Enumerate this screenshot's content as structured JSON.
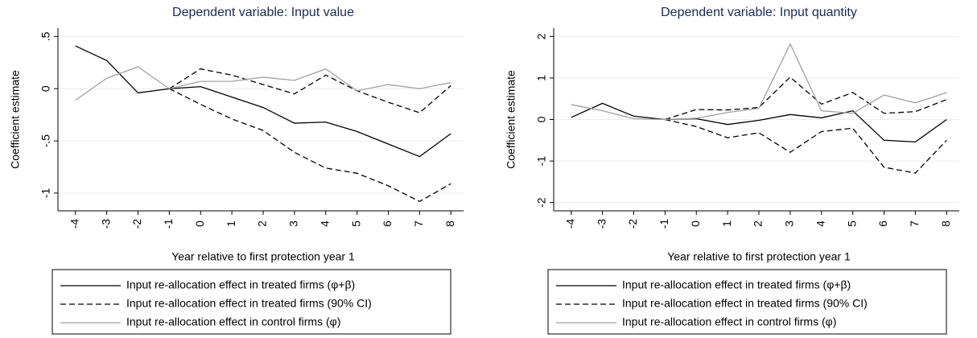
{
  "chart_data": [
    {
      "type": "line",
      "title": "Dependent variable: Input value",
      "y_label": "Coefficient estimate",
      "x_label": "Year relative to first protection year 1",
      "x": [
        -4,
        -3,
        -2,
        -1,
        0,
        1,
        2,
        3,
        4,
        5,
        6,
        7,
        8
      ],
      "xlim": [
        -4.25,
        8.25
      ],
      "xticks": [
        -4,
        -3,
        -2,
        -1,
        0,
        1,
        2,
        3,
        4,
        5,
        6,
        7,
        8
      ],
      "ylim": [
        -1.17,
        0.58
      ],
      "yticks": [
        -1,
        {
          "value": -0.5,
          "label": "-.5"
        },
        0,
        {
          "value": 0.5,
          "label": ".5"
        }
      ],
      "grid": true,
      "series": [
        {
          "name": "Input re-allocation effect in treated firms (φ+β)",
          "color": "#000000",
          "dash": false,
          "values": [
            0.41,
            0.27,
            -0.04,
            0,
            0.02,
            -0.08,
            -0.18,
            -0.33,
            -0.32,
            -0.41,
            -0.53,
            -0.65,
            -0.43
          ]
        },
        {
          "name": "Input re-allocation effect in treated firms (90% CI)",
          "color": "#000000",
          "dash": true,
          "values": [
            null,
            null,
            null,
            0,
            0.19,
            0.13,
            0.04,
            -0.05,
            0.13,
            -0.02,
            -0.13,
            -0.23,
            0.03
          ],
          "lower": [
            null,
            null,
            null,
            0,
            -0.15,
            -0.29,
            -0.4,
            -0.61,
            -0.76,
            -0.81,
            -0.93,
            -1.08,
            -0.91
          ]
        },
        {
          "name": "Input re-allocation effect in control firms (φ)",
          "color": "#a0a0a0",
          "dash": false,
          "values": [
            -0.11,
            0.1,
            0.21,
            0,
            0.07,
            0.07,
            0.11,
            0.08,
            0.19,
            -0.02,
            0.04,
            0,
            0.06
          ]
        }
      ]
    },
    {
      "type": "line",
      "title": "Dependent variable: Input quantity",
      "y_label": "Coefficient estimate",
      "x_label": "Year relative to first protection year 1",
      "x": [
        -4,
        -3,
        -2,
        -1,
        0,
        1,
        2,
        3,
        4,
        5,
        6,
        7,
        8
      ],
      "xlim": [
        -4.25,
        8.25
      ],
      "xticks": [
        -4,
        -3,
        -2,
        -1,
        0,
        1,
        2,
        3,
        4,
        5,
        6,
        7,
        8
      ],
      "ylim": [
        -2.2,
        2.2
      ],
      "yticks": [
        -2,
        -1,
        0,
        1,
        2
      ],
      "grid": true,
      "series": [
        {
          "name": "Input re-allocation effect in treated firms (φ+β)",
          "color": "#000000",
          "dash": false,
          "values": [
            0.05,
            0.39,
            0.08,
            0,
            0.02,
            -0.12,
            -0.02,
            0.12,
            0.04,
            0.21,
            -0.5,
            -0.54,
            0
          ]
        },
        {
          "name": "Input re-allocation effect in treated firms (90% CI)",
          "color": "#000000",
          "dash": true,
          "values": [
            null,
            null,
            null,
            0,
            0.24,
            0.23,
            0.29,
            1.02,
            0.37,
            0.65,
            0.15,
            0.19,
            0.48
          ],
          "lower": [
            null,
            null,
            null,
            0,
            -0.17,
            -0.44,
            -0.32,
            -0.79,
            -0.29,
            -0.21,
            -1.15,
            -1.29,
            -0.5
          ]
        },
        {
          "name": "Input re-allocation effect in control firms (φ)",
          "color": "#a0a0a0",
          "dash": false,
          "values": [
            0.36,
            0.21,
            0.02,
            0,
            0.03,
            0.17,
            0.27,
            1.82,
            0.21,
            0.15,
            0.59,
            0.4,
            0.65
          ]
        }
      ]
    }
  ]
}
